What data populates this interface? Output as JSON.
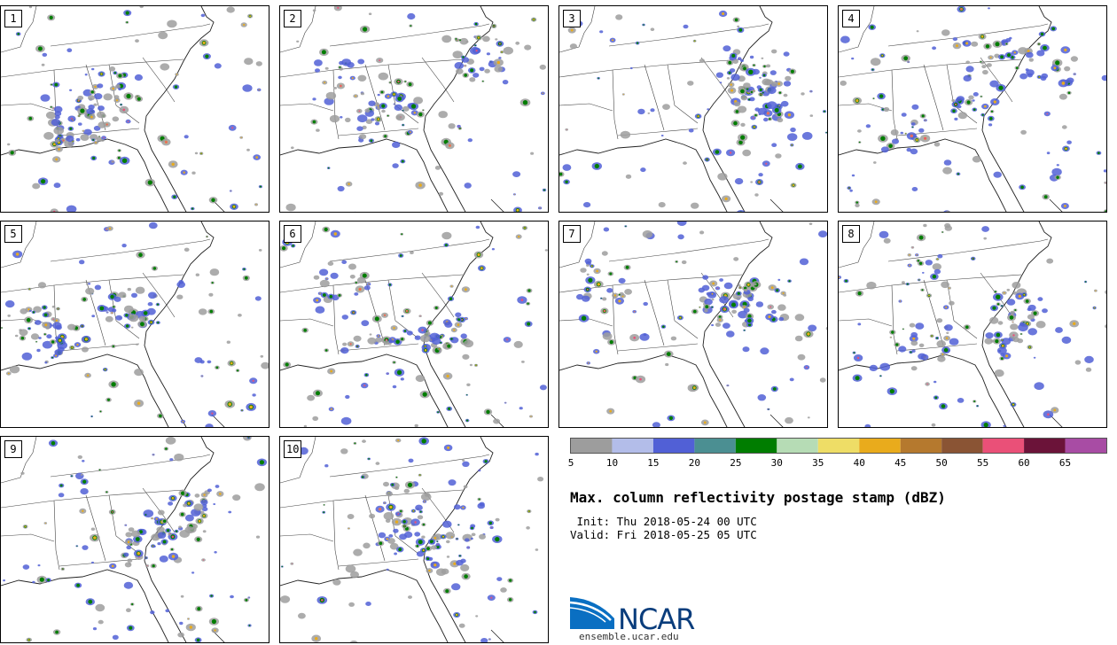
{
  "panels": [
    {
      "label": "1"
    },
    {
      "label": "2"
    },
    {
      "label": "3"
    },
    {
      "label": "4"
    },
    {
      "label": "5"
    },
    {
      "label": "6"
    },
    {
      "label": "7"
    },
    {
      "label": "8"
    },
    {
      "label": "9"
    },
    {
      "label": "10"
    }
  ],
  "colorbar": {
    "colors": [
      "#9d9d9d",
      "#b3bde9",
      "#5160d6",
      "#4b8f92",
      "#007d00",
      "#b6dcb5",
      "#eedd66",
      "#e9ab1c",
      "#b5792e",
      "#8a5434",
      "#ea5078",
      "#6b1339",
      "#a84ca4"
    ],
    "ticks": [
      "5",
      "10",
      "15",
      "20",
      "25",
      "30",
      "35",
      "40",
      "45",
      "50",
      "55",
      "60",
      "65"
    ]
  },
  "title": "Max. column reflectivity postage stamp (dBZ)",
  "init_line": " Init: Thu 2018-05-24 00 UTC",
  "valid_line": "Valid: Fri 2018-05-25 05 UTC",
  "logo": {
    "name": "NCAR",
    "url": "ensemble.ucar.edu",
    "color": "#0a3d7c"
  },
  "storm_seeds": [
    3,
    17,
    29,
    41,
    53,
    67,
    79,
    91,
    103,
    117
  ]
}
